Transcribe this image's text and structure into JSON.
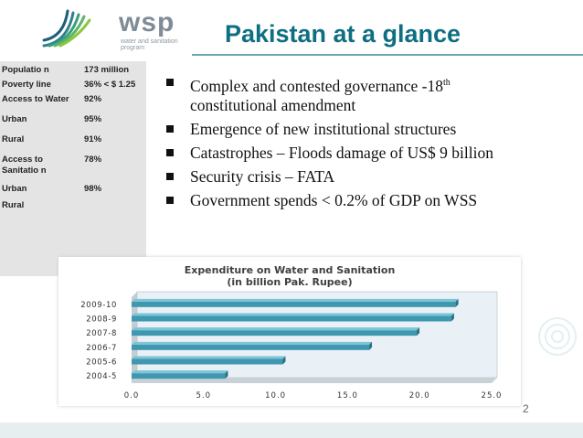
{
  "logo": {
    "word": "wsp",
    "subtitle": "water and sanitation program",
    "icon": "wsp-logo-icon"
  },
  "slide": {
    "title": "Pakistan at a glance",
    "page_number": "2"
  },
  "side_table": [
    {
      "key": "Populatio n",
      "value": "173 million"
    },
    {
      "key": "Poverty line",
      "value": "36% < $ 1.25"
    },
    {
      "key": "Access to Water",
      "value": "92%"
    },
    {
      "key": "Urban",
      "value": "95%"
    },
    {
      "key": "Rural",
      "value": "91%"
    },
    {
      "key": "Access to Sanitatio n",
      "value": "78%"
    },
    {
      "key": "Urban",
      "value": "98%"
    },
    {
      "key": "Rural",
      "value": ""
    }
  ],
  "bullets": {
    "b1_text": "Complex and contested governance -18",
    "b1_sup": "th",
    "b1_tail": "constitutional amendment",
    "b2": "Emergence of new institutional structures",
    "b3": "Catastrophes – Floods damage of US$ 9 billion",
    "b4": "Security crisis – FATA",
    "b5": "Government spends < 0.2% of GDP on WSS"
  },
  "chart_data": {
    "type": "bar",
    "orientation": "horizontal",
    "title": "Expenditure on Water and Sanitation",
    "subtitle": "(in billion Pak. Rupee)",
    "categories": [
      "2009-10",
      "2008-9",
      "2007-8",
      "2006-7",
      "2005-6",
      "2004-5"
    ],
    "values": [
      22.5,
      22.2,
      19.8,
      16.5,
      10.5,
      6.5
    ],
    "xlim": [
      0,
      25
    ],
    "xticks": [
      "0.0",
      "5.0",
      "10.0",
      "15.0",
      "20.0",
      "25.0"
    ],
    "bar_color": "#3f98b0",
    "title_color": "#404040",
    "legend": "none"
  }
}
